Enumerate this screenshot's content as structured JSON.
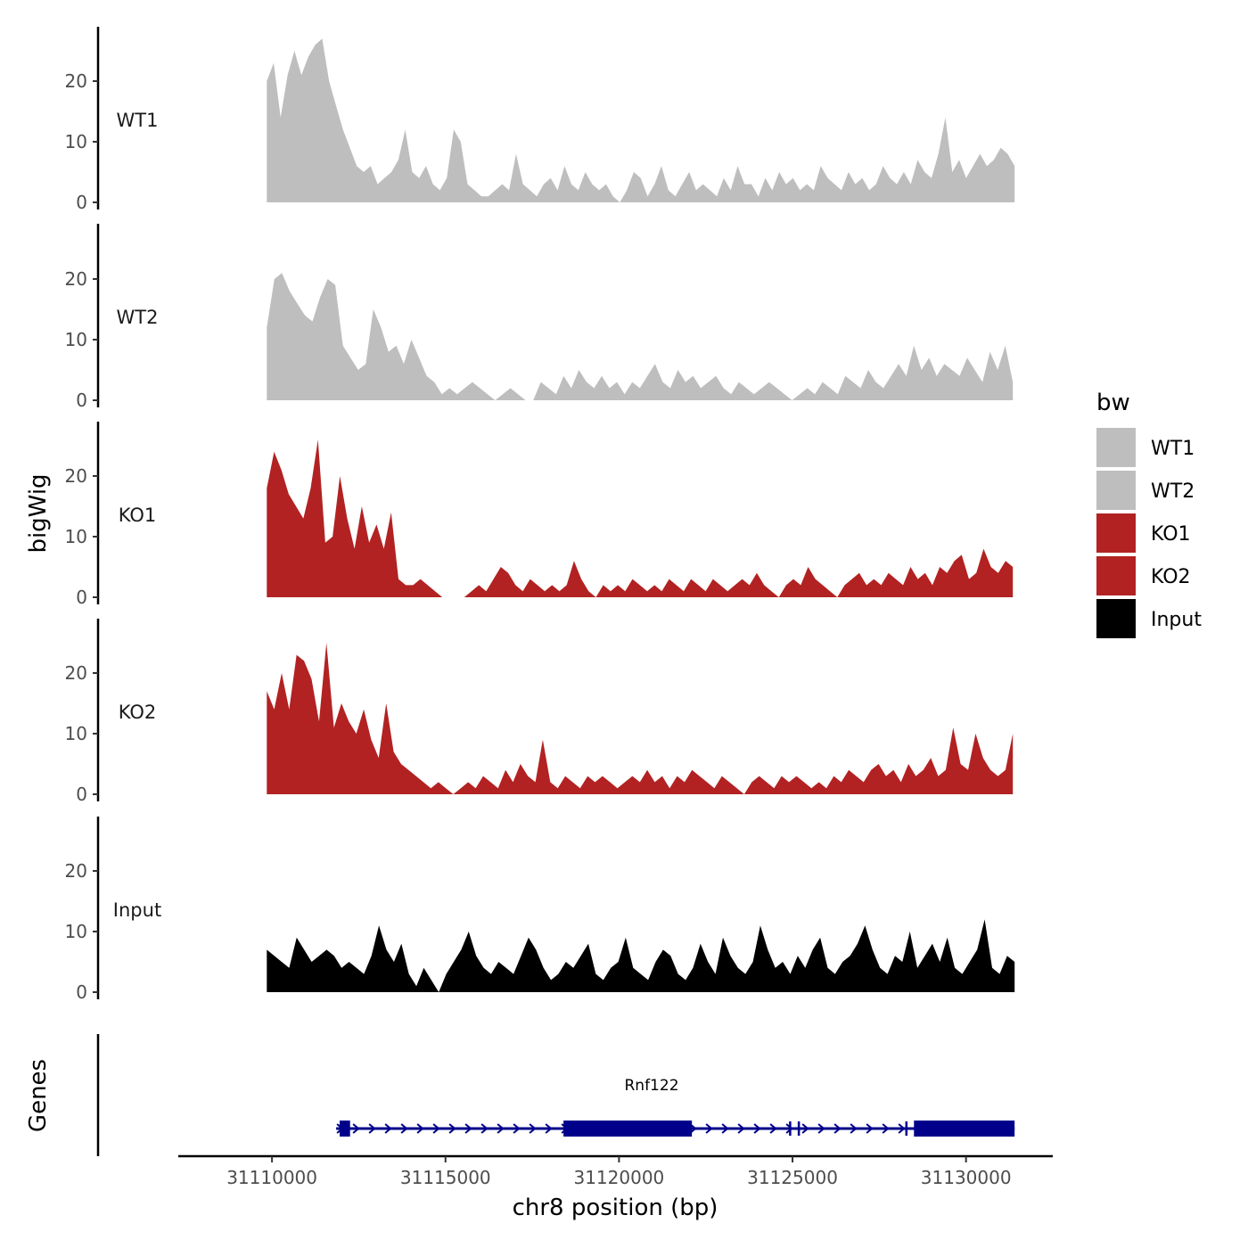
{
  "chart_data": {
    "type": "area",
    "title": "",
    "xlabel": "chr8 position (bp)",
    "ylabel": "bigWig",
    "gene_panel_label": "Genes",
    "xlim": [
      31107300,
      31132500
    ],
    "x_ticks": [
      31110000,
      31115000,
      31120000,
      31125000,
      31130000
    ],
    "x_tick_labels": [
      "31110000",
      "31115000",
      "31120000",
      "31125000",
      "31130000"
    ],
    "ylim": [
      0,
      29
    ],
    "y_ticks": [
      0,
      10,
      20
    ],
    "y_tick_labels": [
      "0",
      "10",
      "20"
    ],
    "legend": {
      "title": "bw",
      "position": "right"
    },
    "series": [
      {
        "name": "WT1",
        "label": "WT1",
        "color": "#bebebe",
        "start": 31109850,
        "end": 31131400,
        "values": [
          20,
          23,
          14,
          21,
          25,
          21,
          24,
          26,
          27,
          20,
          16,
          12,
          9,
          6,
          5,
          6,
          3,
          4,
          5,
          7,
          12,
          5,
          4,
          6,
          3,
          2,
          4,
          12,
          10,
          3,
          2,
          1,
          1,
          2,
          3,
          2,
          8,
          3,
          2,
          1,
          3,
          4,
          2,
          6,
          3,
          2,
          5,
          3,
          2,
          3,
          1,
          0,
          2,
          5,
          4,
          1,
          3,
          6,
          2,
          1,
          3,
          5,
          2,
          3,
          2,
          1,
          4,
          2,
          6,
          3,
          3,
          1,
          4,
          2,
          5,
          3,
          4,
          2,
          3,
          2,
          6,
          4,
          3,
          2,
          5,
          3,
          4,
          2,
          3,
          6,
          4,
          3,
          5,
          3,
          7,
          5,
          4,
          8,
          14,
          5,
          7,
          4,
          6,
          8,
          6,
          7,
          9,
          8,
          6
        ]
      },
      {
        "name": "WT2",
        "label": "WT2",
        "color": "#bebebe",
        "start": 31109850,
        "end": 31131350,
        "values": [
          12,
          20,
          21,
          18,
          16,
          14,
          13,
          17,
          20,
          19,
          9,
          7,
          5,
          6,
          15,
          12,
          8,
          9,
          6,
          10,
          7,
          4,
          3,
          1,
          2,
          1,
          2,
          3,
          2,
          1,
          0,
          1,
          2,
          1,
          0,
          0,
          3,
          2,
          1,
          4,
          2,
          5,
          3,
          2,
          4,
          2,
          3,
          1,
          3,
          2,
          4,
          6,
          3,
          2,
          5,
          3,
          4,
          2,
          3,
          4,
          2,
          1,
          3,
          2,
          1,
          2,
          3,
          2,
          1,
          0,
          1,
          2,
          1,
          3,
          2,
          1,
          4,
          3,
          2,
          5,
          3,
          2,
          4,
          6,
          4,
          9,
          5,
          7,
          4,
          6,
          5,
          4,
          7,
          5,
          3,
          8,
          5,
          9,
          3
        ]
      },
      {
        "name": "KO1",
        "label": "KO1",
        "color": "#b22222",
        "start": 31109850,
        "end": 31131350,
        "values": [
          18,
          24,
          21,
          17,
          15,
          13,
          18,
          26,
          9,
          10,
          20,
          13,
          8,
          15,
          9,
          12,
          8,
          14,
          3,
          2,
          2,
          3,
          2,
          1,
          0,
          0,
          0,
          0,
          1,
          2,
          1,
          3,
          5,
          4,
          2,
          1,
          3,
          2,
          1,
          2,
          1,
          2,
          6,
          3,
          1,
          0,
          2,
          1,
          2,
          1,
          3,
          2,
          1,
          2,
          1,
          3,
          2,
          1,
          3,
          2,
          1,
          3,
          2,
          1,
          2,
          3,
          2,
          4,
          2,
          1,
          0,
          2,
          3,
          2,
          5,
          3,
          2,
          1,
          0,
          2,
          3,
          4,
          2,
          3,
          2,
          4,
          3,
          2,
          5,
          3,
          4,
          2,
          5,
          4,
          6,
          7,
          3,
          4,
          8,
          5,
          4,
          6,
          5
        ]
      },
      {
        "name": "KO2",
        "label": "KO2",
        "color": "#b22222",
        "start": 31109850,
        "end": 31131350,
        "values": [
          17,
          14,
          20,
          14,
          23,
          22,
          19,
          12,
          25,
          11,
          15,
          12,
          10,
          14,
          9,
          6,
          15,
          7,
          5,
          4,
          3,
          2,
          1,
          2,
          1,
          0,
          1,
          2,
          1,
          3,
          2,
          1,
          4,
          2,
          5,
          3,
          2,
          9,
          2,
          1,
          3,
          2,
          1,
          3,
          2,
          3,
          2,
          1,
          2,
          3,
          2,
          4,
          2,
          3,
          1,
          3,
          2,
          4,
          3,
          2,
          1,
          3,
          2,
          1,
          0,
          2,
          3,
          2,
          1,
          3,
          2,
          3,
          2,
          1,
          2,
          1,
          3,
          2,
          4,
          3,
          2,
          4,
          5,
          3,
          4,
          2,
          5,
          3,
          4,
          6,
          3,
          4,
          11,
          5,
          4,
          10,
          6,
          4,
          3,
          4,
          10
        ]
      },
      {
        "name": "Input",
        "label": "Input",
        "color": "#000000",
        "start": 31109850,
        "end": 31131400,
        "values": [
          7,
          6,
          5,
          4,
          9,
          7,
          5,
          6,
          7,
          6,
          4,
          5,
          4,
          3,
          6,
          11,
          7,
          5,
          8,
          3,
          1,
          4,
          2,
          0,
          3,
          5,
          7,
          10,
          6,
          4,
          3,
          5,
          4,
          3,
          6,
          9,
          7,
          4,
          2,
          3,
          5,
          4,
          6,
          8,
          3,
          2,
          4,
          5,
          9,
          4,
          3,
          2,
          5,
          7,
          6,
          3,
          2,
          4,
          8,
          5,
          3,
          9,
          6,
          4,
          3,
          5,
          11,
          7,
          4,
          5,
          3,
          6,
          4,
          7,
          9,
          4,
          3,
          5,
          6,
          8,
          11,
          7,
          4,
          3,
          6,
          5,
          10,
          4,
          6,
          8,
          5,
          9,
          4,
          3,
          5,
          7,
          12,
          4,
          3,
          6,
          5
        ]
      }
    ],
    "gene": {
      "name": "Rnf122",
      "color": "#00008b",
      "strand": "+",
      "intron_start": 31111850,
      "intron_end": 31131400,
      "exons": [
        [
          31111950,
          31112250
        ],
        [
          31118400,
          31122100
        ],
        [
          31124900,
          31124950
        ],
        [
          31125150,
          31125200
        ],
        [
          31128250,
          31128300
        ],
        [
          31128500,
          31131400
        ]
      ]
    }
  }
}
